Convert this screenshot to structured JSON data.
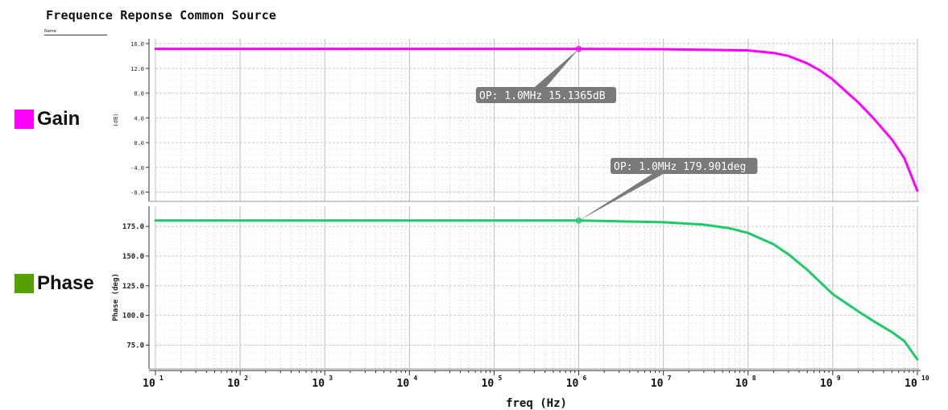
{
  "title": "Frequence Reponse Common Source",
  "name_label": "Name",
  "legend": [
    {
      "label": "Gain",
      "color": "#ff00ff"
    },
    {
      "label": "Phase",
      "color": "#55a000"
    }
  ],
  "chart_data": [
    {
      "type": "line",
      "ylabel": "(dB)",
      "ylim": [
        -9.5,
        16.8
      ],
      "yticks": [
        16.0,
        12.0,
        8.0,
        4.0,
        0.0,
        -4.0,
        -8.0
      ],
      "ytick_labels": [
        "16.0",
        "12.0",
        "8.0",
        "4.0",
        "0.0",
        "-4.0",
        "-8.0"
      ],
      "xscale": "log",
      "grid": true,
      "series": [
        {
          "x": [
            10,
            100,
            1000,
            10000,
            100000,
            1000000,
            10000000,
            100000000,
            200000000,
            300000000,
            500000000,
            700000000,
            1000000000,
            2000000000,
            3000000000,
            5000000000,
            7000000000,
            10000000000
          ],
          "y": [
            15.14,
            15.14,
            15.14,
            15.14,
            15.14,
            15.14,
            15.1,
            14.9,
            14.5,
            14.0,
            12.8,
            11.7,
            10.2,
            6.5,
            4.0,
            0.5,
            -2.5,
            -7.8
          ],
          "color": "#ff00ff"
        }
      ],
      "annotation": {
        "text": "OP: 1.0MHz 15.1365dB",
        "x": 1000000,
        "y": 15.1365
      }
    },
    {
      "type": "line",
      "ylabel": "Phase (deg)",
      "ylim": [
        55,
        192
      ],
      "yticks": [
        175.0,
        150.0,
        125.0,
        100.0,
        75.0
      ],
      "ytick_labels": [
        "175.0",
        "150.0",
        "125.0",
        "100.0",
        "75.0"
      ],
      "xscale": "log",
      "grid": true,
      "series": [
        {
          "x": [
            10,
            100,
            1000,
            10000,
            100000,
            1000000,
            10000000,
            30000000,
            60000000,
            100000000,
            200000000,
            300000000,
            500000000,
            700000000,
            1000000000,
            2000000000,
            3000000000,
            5000000000,
            7000000000,
            10000000000
          ],
          "y": [
            179.9,
            179.9,
            179.9,
            179.9,
            179.9,
            179.9,
            178.5,
            176.5,
            173.5,
            169.5,
            160.0,
            151.5,
            138.5,
            128.5,
            118.0,
            103.5,
            95.5,
            86.0,
            78.5,
            63.0
          ],
          "color": "#1ec96a"
        }
      ],
      "annotation": {
        "text": "OP: 1.0MHz 179.901deg",
        "x": 1000000,
        "y": 179.901
      }
    }
  ],
  "x_axis": {
    "label": "freq (Hz)",
    "tick_bases": [
      "10",
      "10",
      "10",
      "10",
      "10",
      "10",
      "10",
      "10",
      "10",
      "10"
    ],
    "tick_exponents": [
      "1",
      "2",
      "3",
      "4",
      "5",
      "6",
      "7",
      "8",
      "9",
      "10"
    ],
    "range": [
      10,
      10000000000
    ]
  }
}
